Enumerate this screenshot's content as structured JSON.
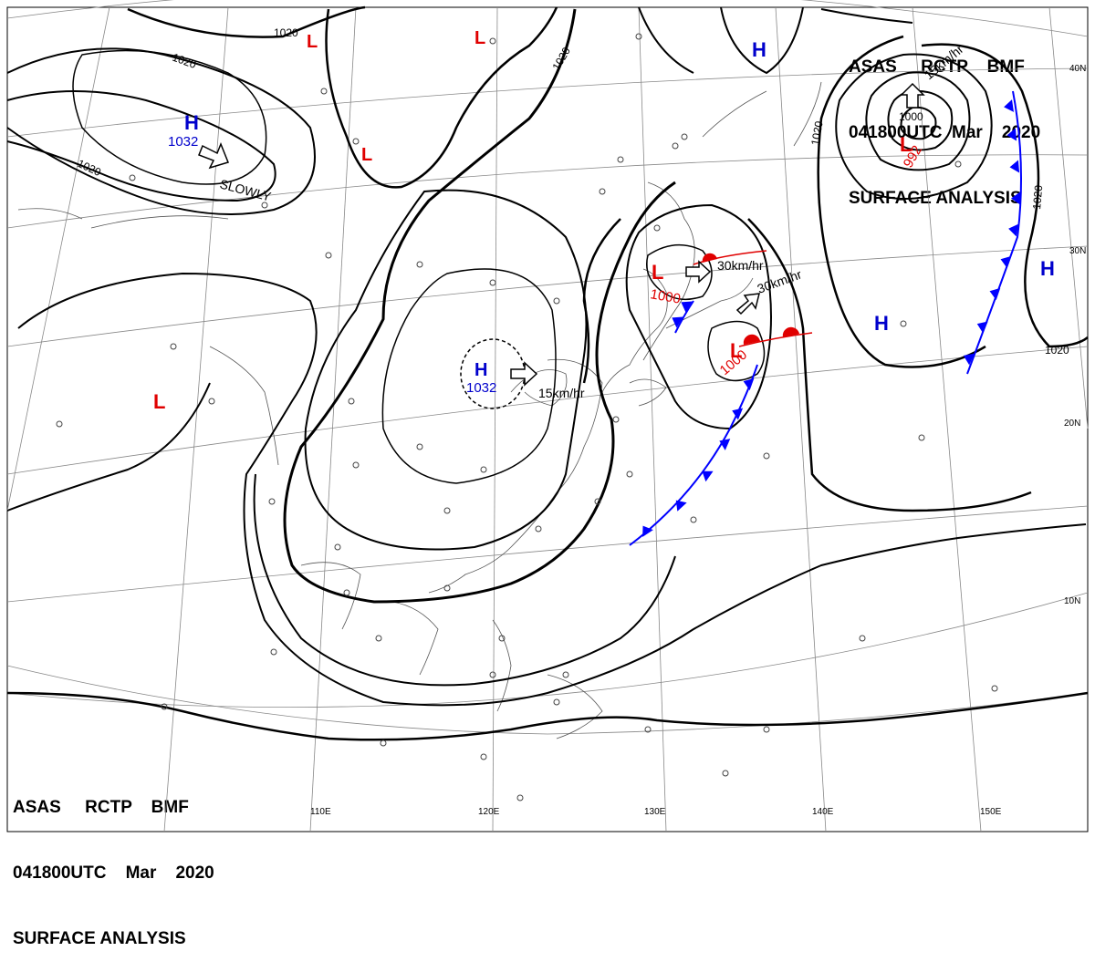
{
  "header_top": {
    "line1": "ASAS     RCTP    BMF",
    "line2": "041800UTC  Mar    2020",
    "line3": "SURFACE ANALYSIS"
  },
  "header_bottom": {
    "line1": "ASAS     RCTP    BMF",
    "line2": "041800UTC    Mar    2020",
    "line3": "SURFACE ANALYSIS"
  },
  "colors": {
    "high": "#0000cc",
    "low": "#e00000",
    "cold_front": "#0000ff",
    "warm_front": "#e00000",
    "isobar": "#000000",
    "grid": "#808080"
  },
  "lon_labels": [
    "110E",
    "120E",
    "130E",
    "140E",
    "150E"
  ],
  "lat_labels": [
    "40N",
    "30N",
    "20N",
    "10N"
  ],
  "pressure_centers": [
    {
      "type": "H",
      "value": "1032"
    },
    {
      "type": "H",
      "value": "1032"
    },
    {
      "type": "H",
      "value": ""
    },
    {
      "type": "H",
      "value": ""
    },
    {
      "type": "H",
      "value": ""
    },
    {
      "type": "H",
      "value": ""
    },
    {
      "type": "L",
      "value": "1000"
    },
    {
      "type": "L",
      "value": "1000"
    },
    {
      "type": "L",
      "value": "992"
    },
    {
      "type": "L",
      "value": ""
    },
    {
      "type": "L",
      "value": ""
    },
    {
      "type": "L",
      "value": ""
    },
    {
      "type": "L",
      "value": ""
    }
  ],
  "isobar_labels": [
    "1020",
    "1020",
    "1020",
    "1020",
    "1020",
    "1020",
    "1020",
    "1000"
  ],
  "motion_labels": [
    "SLOWLY",
    "15km/hr",
    "30km/hr",
    "30km/hr",
    "15km/hr"
  ]
}
